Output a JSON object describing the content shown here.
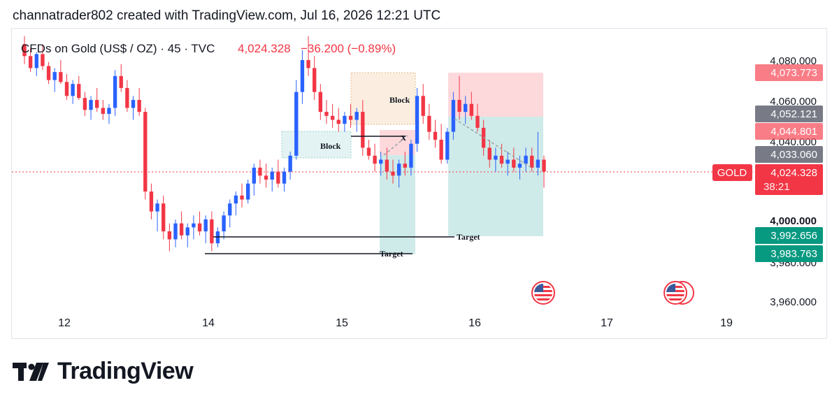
{
  "header": {
    "caption": "channatrader802 created with TradingView.com, Jul 16, 2026 12:21 UTC"
  },
  "symbol": {
    "name": "CFDs on Gold (US$ / OZ) · 45 · TVC",
    "price": "4,024.328",
    "change": "−36.200 (−0.89%)"
  },
  "axis_labels": {
    "y_ticks": [
      "4,080.000",
      "4,060.000",
      "4,040.000",
      "4,000.000",
      "3,980.000",
      "3,960.000"
    ],
    "x_ticks": [
      "12",
      "14",
      "15",
      "16",
      "17",
      "19"
    ]
  },
  "price_tags": {
    "tag1": "4,073.773",
    "tag2": "4,052.121",
    "tag3": "4,044.801",
    "tag4": "4,033.060",
    "current": "4,024.328",
    "countdown": "38:21",
    "gold_label": "GOLD",
    "tag5": "3,992.656",
    "tag6": "3,983.763"
  },
  "annotations": {
    "block1": "Block",
    "block2": "Block",
    "x_mark": "X",
    "target1": "Target",
    "target2": "Target"
  },
  "colors": {
    "bull": "#2962ff",
    "bear": "#f23645",
    "profit_zone": "#26a69a",
    "loss_zone": "#f7525f",
    "pricetag_red": "#f7525f",
    "pricetag_gray": "#787b86",
    "pricetag_green": "#089981"
  },
  "brand": {
    "name": "TradingView"
  },
  "chart_data": {
    "type": "candlestick",
    "title": "CFDs on Gold (US$ / OZ) · 45 · TVC",
    "x_ticks": [
      "12",
      "14",
      "15",
      "16",
      "17",
      "19"
    ],
    "ylim": [
      3955,
      4095
    ],
    "current_price": 4024.328,
    "candles": [
      [
        4088,
        4092,
        4078,
        4082
      ],
      [
        4082,
        4086,
        4074,
        4076
      ],
      [
        4076,
        4084,
        4072,
        4083
      ],
      [
        4083,
        4088,
        4075,
        4077
      ],
      [
        4077,
        4079,
        4068,
        4070
      ],
      [
        4070,
        4076,
        4064,
        4074
      ],
      [
        4074,
        4080,
        4068,
        4069
      ],
      [
        4069,
        4073,
        4060,
        4062
      ],
      [
        4062,
        4070,
        4058,
        4068
      ],
      [
        4068,
        4072,
        4060,
        4061
      ],
      [
        4061,
        4064,
        4052,
        4055
      ],
      [
        4055,
        4062,
        4050,
        4060
      ],
      [
        4060,
        4066,
        4054,
        4056
      ],
      [
        4056,
        4060,
        4050,
        4053
      ],
      [
        4053,
        4058,
        4048,
        4056
      ],
      [
        4056,
        4075,
        4052,
        4072
      ],
      [
        4072,
        4078,
        4064,
        4066
      ],
      [
        4066,
        4070,
        4054,
        4056
      ],
      [
        4056,
        4062,
        4050,
        4060
      ],
      [
        4060,
        4066,
        4052,
        4054
      ],
      [
        4054,
        4056,
        4010,
        4014
      ],
      [
        4014,
        4018,
        4000,
        4004
      ],
      [
        4004,
        4010,
        3994,
        4008
      ],
      [
        4008,
        4012,
        3990,
        3994
      ],
      [
        3994,
        3998,
        3984,
        3990
      ],
      [
        3990,
        4000,
        3986,
        3998
      ],
      [
        3998,
        4004,
        3990,
        3992
      ],
      [
        3992,
        3998,
        3986,
        3996
      ],
      [
        3996,
        4002,
        3990,
        3998
      ],
      [
        3998,
        4004,
        3992,
        3994
      ],
      [
        3994,
        4002,
        3988,
        4000
      ],
      [
        4000,
        4004,
        3984,
        3988
      ],
      [
        3988,
        3996,
        3986,
        3994
      ],
      [
        3994,
        4004,
        3990,
        4002
      ],
      [
        4002,
        4010,
        3996,
        4008
      ],
      [
        4008,
        4014,
        4002,
        4012
      ],
      [
        4012,
        4018,
        4006,
        4010
      ],
      [
        4010,
        4020,
        4008,
        4018
      ],
      [
        4018,
        4028,
        4012,
        4026
      ],
      [
        4026,
        4030,
        4018,
        4022
      ],
      [
        4022,
        4028,
        4016,
        4020
      ],
      [
        4020,
        4026,
        4014,
        4024
      ],
      [
        4024,
        4030,
        4016,
        4018
      ],
      [
        4018,
        4026,
        4014,
        4024
      ],
      [
        4024,
        4034,
        4020,
        4032
      ],
      [
        4032,
        4070,
        4030,
        4064
      ],
      [
        4064,
        4085,
        4058,
        4080
      ],
      [
        4080,
        4092,
        4072,
        4076
      ],
      [
        4076,
        4082,
        4060,
        4064
      ],
      [
        4064,
        4068,
        4050,
        4054
      ],
      [
        4054,
        4060,
        4048,
        4052
      ],
      [
        4052,
        4058,
        4046,
        4050
      ],
      [
        4050,
        4056,
        4044,
        4048
      ],
      [
        4048,
        4054,
        4044,
        4052
      ],
      [
        4052,
        4058,
        4046,
        4050
      ],
      [
        4050,
        4056,
        4044,
        4054
      ],
      [
        4054,
        4060,
        4032,
        4036
      ],
      [
        4036,
        4040,
        4030,
        4032
      ],
      [
        4032,
        4038,
        4024,
        4028
      ],
      [
        4028,
        4034,
        4022,
        4030
      ],
      [
        4030,
        4036,
        4020,
        4024
      ],
      [
        4024,
        4030,
        4018,
        4022
      ],
      [
        4022,
        4030,
        4016,
        4028
      ],
      [
        4028,
        4034,
        4022,
        4026
      ],
      [
        4026,
        4040,
        4022,
        4038
      ],
      [
        4038,
        4066,
        4034,
        4062
      ],
      [
        4062,
        4068,
        4048,
        4052
      ],
      [
        4052,
        4058,
        4040,
        4044
      ],
      [
        4044,
        4050,
        4036,
        4040
      ],
      [
        4040,
        4048,
        4028,
        4030
      ],
      [
        4030,
        4046,
        4028,
        4044
      ],
      [
        4044,
        4064,
        4040,
        4060
      ],
      [
        4060,
        4072,
        4050,
        4054
      ],
      [
        4054,
        4062,
        4048,
        4058
      ],
      [
        4058,
        4064,
        4050,
        4052
      ],
      [
        4052,
        4058,
        4044,
        4046
      ],
      [
        4046,
        4050,
        4032,
        4036
      ],
      [
        4036,
        4040,
        4026,
        4030
      ],
      [
        4030,
        4036,
        4024,
        4032
      ],
      [
        4032,
        4038,
        4026,
        4028
      ],
      [
        4028,
        4034,
        4022,
        4030
      ],
      [
        4030,
        4036,
        4024,
        4026
      ],
      [
        4026,
        4032,
        4020,
        4028
      ],
      [
        4028,
        4036,
        4024,
        4032
      ],
      [
        4032,
        4036,
        4024,
        4026
      ],
      [
        4026,
        4044,
        4022,
        4030
      ],
      [
        4030,
        4032,
        4016,
        4024
      ]
    ],
    "levels": [
      4073.773,
      4052.121,
      4044.801,
      4033.06,
      4024.328,
      3992.656,
      3983.763
    ]
  }
}
